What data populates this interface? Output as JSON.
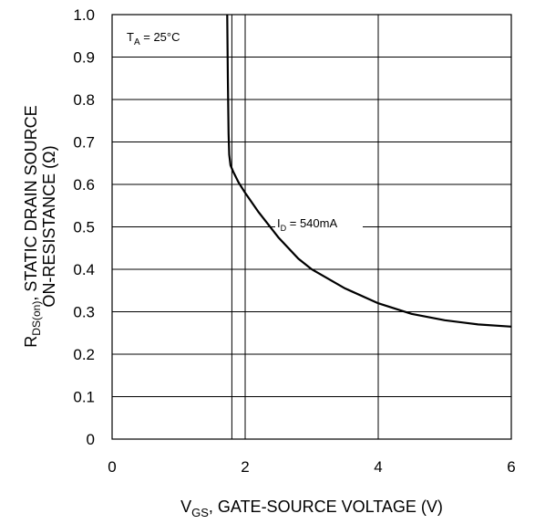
{
  "chart_data": {
    "type": "line",
    "xlabel_main": "V",
    "xlabel_sub": "GS",
    "xlabel_rest": ", GATE-SOURCE VOLTAGE (V)",
    "ylabel_main": "R",
    "ylabel_sub": "DS(on)",
    "ylabel_rest": ", STATIC DRAIN SOURCE",
    "ylabel_line2": "ON-RESISTANCE (Ω)",
    "xlim": [
      0,
      6
    ],
    "ylim": [
      0,
      1.0
    ],
    "x_ticks": [
      "0",
      "2",
      "4",
      "6"
    ],
    "x_tick_values": [
      0,
      2,
      4,
      6
    ],
    "y_ticks": [
      "0",
      "0.1",
      "0.2",
      "0.3",
      "0.4",
      "0.5",
      "0.6",
      "0.7",
      "0.8",
      "0.9",
      "1.0"
    ],
    "y_tick_values": [
      0,
      0.1,
      0.2,
      0.3,
      0.4,
      0.5,
      0.6,
      0.7,
      0.8,
      0.9,
      1.0
    ],
    "x_grid_values": [
      0,
      1.8,
      2,
      4,
      6
    ],
    "annotations": {
      "temp_main": "T",
      "temp_sub": "A",
      "temp_rest": " = 25°C",
      "curve_main": "I",
      "curve_sub": "D",
      "curve_rest": " = 540mA"
    },
    "series": [
      {
        "x": [
          1.73,
          1.74,
          1.75,
          1.76,
          1.78,
          1.82,
          1.9,
          2.0,
          2.2,
          2.5,
          2.8,
          3.0,
          3.5,
          4.0,
          4.5,
          5.0,
          5.5,
          6.0
        ],
        "y": [
          1.0,
          0.85,
          0.72,
          0.67,
          0.645,
          0.63,
          0.605,
          0.58,
          0.535,
          0.475,
          0.425,
          0.4,
          0.355,
          0.32,
          0.295,
          0.28,
          0.27,
          0.265
        ]
      }
    ]
  }
}
